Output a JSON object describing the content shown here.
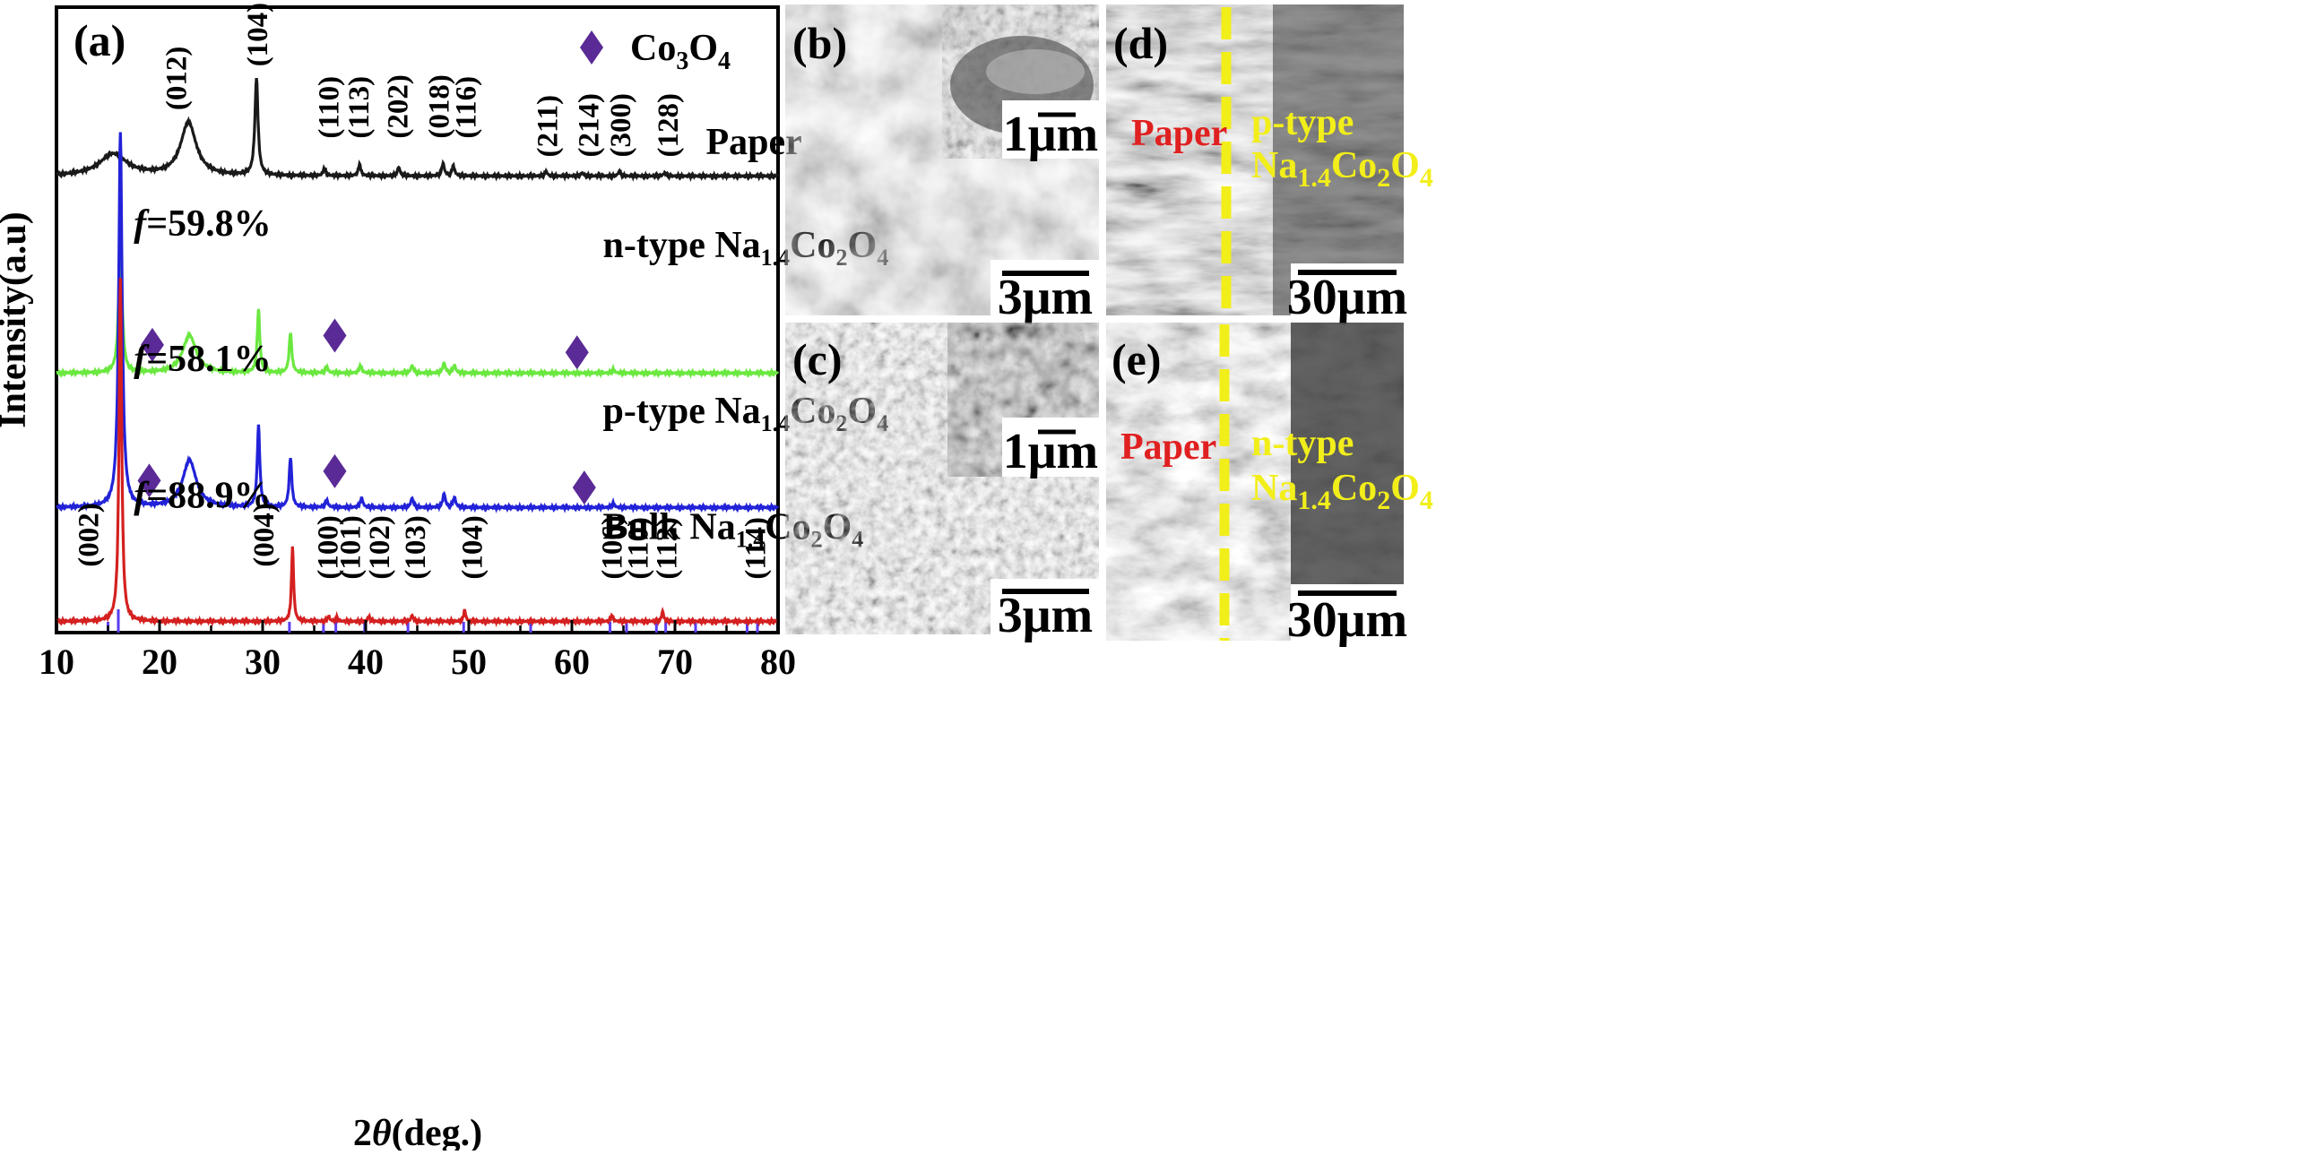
{
  "chart_data": {
    "type": "line",
    "panel_label": "(a)",
    "xlabel": "2θ(deg.)",
    "ylabel": "Intensity(a.u)",
    "xlim": [
      10,
      80
    ],
    "x_ticks": [
      10,
      20,
      30,
      40,
      50,
      60,
      70,
      80
    ],
    "legend": {
      "marker": "diamond",
      "label": "Co3O4",
      "color": "#5a2a96",
      "placement": "top-right"
    },
    "series": [
      {
        "name": "Paper",
        "color": "#1a1a1a",
        "offset": 0.73,
        "peaks": [
          {
            "x": 15.5,
            "h": 0.035,
            "w": 1.6
          },
          {
            "x": 22.8,
            "h": 0.085,
            "w": 0.9
          },
          {
            "x": 29.4,
            "h": 0.155,
            "w": 0.18
          },
          {
            "x": 36.0,
            "h": 0.012,
            "w": 0.15
          },
          {
            "x": 39.4,
            "h": 0.018,
            "w": 0.15
          },
          {
            "x": 43.2,
            "h": 0.014,
            "w": 0.15
          },
          {
            "x": 47.5,
            "h": 0.02,
            "w": 0.15
          },
          {
            "x": 48.5,
            "h": 0.016,
            "w": 0.15
          },
          {
            "x": 57.5,
            "h": 0.007,
            "w": 0.15
          },
          {
            "x": 61.0,
            "h": 0.005,
            "w": 0.15
          },
          {
            "x": 64.6,
            "h": 0.007,
            "w": 0.15
          },
          {
            "x": 69.0,
            "h": 0.005,
            "w": 0.15
          }
        ]
      },
      {
        "name": "n-type Na1.4Co2O4",
        "color": "#6be840",
        "offset": 0.415,
        "peaks": [
          {
            "x": 16.2,
            "h": 0.24,
            "w": 0.18
          },
          {
            "x": 22.9,
            "h": 0.06,
            "w": 0.8
          },
          {
            "x": 29.6,
            "h": 0.1,
            "w": 0.15
          },
          {
            "x": 32.7,
            "h": 0.065,
            "w": 0.15
          },
          {
            "x": 36.2,
            "h": 0.01,
            "w": 0.15
          },
          {
            "x": 39.5,
            "h": 0.012,
            "w": 0.15
          },
          {
            "x": 44.5,
            "h": 0.012,
            "w": 0.15
          },
          {
            "x": 47.6,
            "h": 0.016,
            "w": 0.15
          },
          {
            "x": 48.6,
            "h": 0.012,
            "w": 0.15
          },
          {
            "x": 64.0,
            "h": 0.006,
            "w": 0.15
          }
        ]
      },
      {
        "name": "p-type Na1.4Co2O4",
        "color": "#2222d8",
        "offset": 0.2,
        "peaks": [
          {
            "x": 16.2,
            "h": 0.6,
            "w": 0.2
          },
          {
            "x": 22.9,
            "h": 0.075,
            "w": 0.8
          },
          {
            "x": 29.6,
            "h": 0.13,
            "w": 0.15
          },
          {
            "x": 32.7,
            "h": 0.08,
            "w": 0.15
          },
          {
            "x": 36.2,
            "h": 0.012,
            "w": 0.15
          },
          {
            "x": 39.6,
            "h": 0.015,
            "w": 0.15
          },
          {
            "x": 44.5,
            "h": 0.015,
            "w": 0.15
          },
          {
            "x": 47.6,
            "h": 0.022,
            "w": 0.15
          },
          {
            "x": 48.6,
            "h": 0.016,
            "w": 0.15
          },
          {
            "x": 64.0,
            "h": 0.007,
            "w": 0.15
          }
        ]
      },
      {
        "name": "Bulk Na1.4Co2O4",
        "color": "#d42020",
        "offset": 0.018,
        "peaks": [
          {
            "x": 16.2,
            "h": 0.55,
            "w": 0.15
          },
          {
            "x": 32.9,
            "h": 0.12,
            "w": 0.12
          },
          {
            "x": 36.4,
            "h": 0.008,
            "w": 0.12
          },
          {
            "x": 37.2,
            "h": 0.006,
            "w": 0.12
          },
          {
            "x": 40.3,
            "h": 0.008,
            "w": 0.12
          },
          {
            "x": 44.5,
            "h": 0.01,
            "w": 0.12
          },
          {
            "x": 49.6,
            "h": 0.018,
            "w": 0.12
          },
          {
            "x": 63.9,
            "h": 0.01,
            "w": 0.12
          },
          {
            "x": 68.8,
            "h": 0.016,
            "w": 0.12
          }
        ]
      }
    ],
    "reference_ticks": [
      15.0,
      16.0,
      32.6,
      35.9,
      37.1,
      39.9,
      44.1,
      49.5,
      50.0,
      56.0,
      63.7,
      65.3,
      68.2,
      69.1,
      72.0,
      77.0,
      78.0
    ],
    "series_labels": [
      {
        "name": "Paper",
        "text": "Paper",
        "x": 73,
        "y": 0.765
      },
      {
        "name": "n-type",
        "text": "n-type Na1.4Co2O4",
        "x": 63,
        "y": 0.6
      },
      {
        "name": "p-type",
        "text": "p-type Na1.4Co2O4",
        "x": 63,
        "y": 0.335
      },
      {
        "name": "Bulk",
        "text": "Bulk Na1.4Co2O4",
        "x": 63,
        "y": 0.15
      }
    ],
    "f_labels": [
      {
        "text": "f=59.8%",
        "x": 17.5,
        "y": 0.635
      },
      {
        "text": "f=58.1%",
        "x": 17.5,
        "y": 0.418
      },
      {
        "text": "f=88.9%",
        "x": 17.5,
        "y": 0.2
      }
    ],
    "peak_labels_paper": [
      {
        "text": "(012)",
        "x": 21.5,
        "y": 0.835
      },
      {
        "text": "(104)",
        "x": 29.4,
        "y": 0.905
      },
      {
        "text": "(110)",
        "x": 36.3,
        "y": 0.79
      },
      {
        "text": "(113)",
        "x": 39.2,
        "y": 0.79
      },
      {
        "text": "(202)",
        "x": 43.0,
        "y": 0.79
      },
      {
        "text": "(018)",
        "x": 47.0,
        "y": 0.79
      },
      {
        "text": "(116)",
        "x": 49.6,
        "y": 0.79
      },
      {
        "text": "(211)",
        "x": 57.5,
        "y": 0.76
      },
      {
        "text": "(214)",
        "x": 61.5,
        "y": 0.76
      },
      {
        "text": "(300)",
        "x": 64.6,
        "y": 0.76
      },
      {
        "text": "(128)",
        "x": 69.2,
        "y": 0.76
      }
    ],
    "peak_labels_bulk": [
      {
        "text": "(002)",
        "x": 13.0,
        "y": 0.105
      },
      {
        "text": "(004)",
        "x": 30.0,
        "y": 0.105
      },
      {
        "text": "(100)",
        "x": 36.2,
        "y": 0.085
      },
      {
        "text": "(101)",
        "x": 38.4,
        "y": 0.085
      },
      {
        "text": "(102)",
        "x": 41.2,
        "y": 0.085
      },
      {
        "text": "(103)",
        "x": 44.7,
        "y": 0.085
      },
      {
        "text": "(104)",
        "x": 50.2,
        "y": 0.085
      },
      {
        "text": "(106)",
        "x": 63.8,
        "y": 0.085
      },
      {
        "text": "(110)",
        "x": 66.3,
        "y": 0.085
      },
      {
        "text": "(112)",
        "x": 69.1,
        "y": 0.085
      },
      {
        "text": "(114)",
        "x": 77.7,
        "y": 0.085
      }
    ],
    "co3o4_markers": [
      {
        "x": 19.3,
        "y": 0.46
      },
      {
        "x": 37.0,
        "y": 0.475
      },
      {
        "x": 60.5,
        "y": 0.448
      },
      {
        "x": 19.0,
        "y": 0.243
      },
      {
        "x": 37.0,
        "y": 0.258
      },
      {
        "x": 61.2,
        "y": 0.232
      }
    ]
  },
  "sem_panels": {
    "b": {
      "label": "(b)",
      "main_scale": "3μm",
      "inset_scale": "1μm"
    },
    "c": {
      "label": "(c)",
      "main_scale": "3μm",
      "inset_scale": "1μm"
    },
    "d": {
      "label": "(d)",
      "scale": "30μm",
      "left_text": "Paper",
      "right_type": "p-type",
      "right_formula": "Na1.4Co2O4"
    },
    "e": {
      "label": "(e)",
      "scale": "30μm",
      "left_text": "Paper",
      "right_type": "n-type",
      "right_formula": "Na1.4Co2O4"
    }
  }
}
